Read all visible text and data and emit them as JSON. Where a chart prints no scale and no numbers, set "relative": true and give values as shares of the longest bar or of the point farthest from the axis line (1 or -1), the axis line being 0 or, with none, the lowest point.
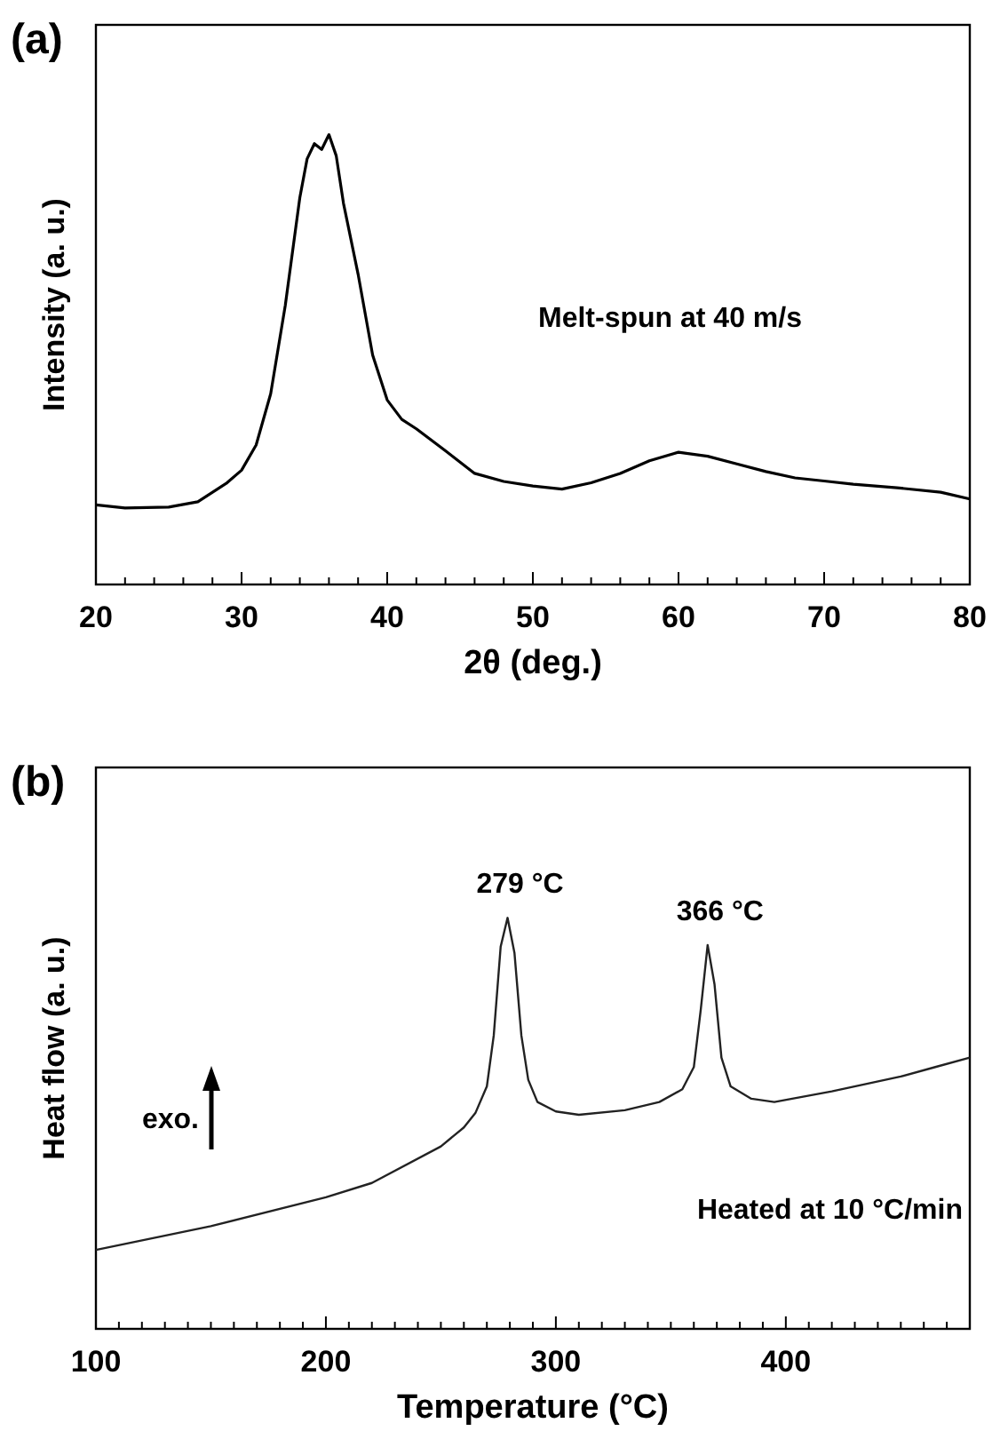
{
  "chart_data": [
    {
      "type": "line",
      "title": "(a)",
      "xlabel": "2θ (deg.)",
      "ylabel": "Intensity (a. u.)",
      "relative": true,
      "tick_labels": "x",
      "grid": false,
      "xlim": [
        20,
        80
      ],
      "xticks": [
        20,
        {
          "value": 22,
          "label": null
        },
        {
          "value": 24,
          "label": null
        },
        {
          "value": 26,
          "label": null
        },
        {
          "value": 28,
          "label": null
        },
        30,
        {
          "value": 32,
          "label": null
        },
        {
          "value": 34,
          "label": null
        },
        {
          "value": 36,
          "label": null
        },
        {
          "value": 38,
          "label": null
        },
        40,
        {
          "value": 42,
          "label": null
        },
        {
          "value": 44,
          "label": null
        },
        {
          "value": 46,
          "label": null
        },
        {
          "value": 48,
          "label": null
        },
        50,
        {
          "value": 52,
          "label": null
        },
        {
          "value": 54,
          "label": null
        },
        {
          "value": 56,
          "label": null
        },
        {
          "value": 58,
          "label": null
        },
        60,
        {
          "value": 62,
          "label": null
        },
        {
          "value": 64,
          "label": null
        },
        {
          "value": 66,
          "label": null
        },
        {
          "value": 68,
          "label": null
        },
        70,
        {
          "value": 72,
          "label": null
        },
        {
          "value": 74,
          "label": null
        },
        {
          "value": 76,
          "label": null
        },
        {
          "value": 78,
          "label": null
        },
        80
      ],
      "annotations": [
        "Melt-spun at 40 m/s"
      ],
      "series": [
        {
          "color": "#000000",
          "x": [
            20,
            22,
            25,
            27,
            29,
            30,
            31,
            32,
            33,
            34,
            34.5,
            35,
            35.5,
            36,
            36.5,
            37,
            38,
            39,
            40,
            41,
            42,
            44,
            46,
            48,
            50,
            52,
            54,
            56,
            58,
            60,
            62,
            64,
            66,
            68,
            70,
            72,
            75,
            78,
            80
          ],
          "values": [
            0.177,
            0.17,
            0.172,
            0.184,
            0.226,
            0.254,
            0.31,
            0.424,
            0.62,
            0.86,
            0.946,
            0.98,
            0.967,
            1,
            0.953,
            0.847,
            0.69,
            0.51,
            0.41,
            0.367,
            0.346,
            0.297,
            0.247,
            0.229,
            0.219,
            0.212,
            0.226,
            0.247,
            0.275,
            0.294,
            0.285,
            0.268,
            0.251,
            0.237,
            0.23,
            0.223,
            0.215,
            0.205,
            0.19
          ]
        }
      ]
    },
    {
      "type": "line",
      "title": "(b)",
      "xlabel": "Temperature (°C)",
      "ylabel": "Heat flow (a. u.)",
      "relative": true,
      "tick_labels": "x",
      "grid": false,
      "xlim": [
        100,
        480
      ],
      "xticks": [
        100,
        {
          "value": 110,
          "label": null
        },
        {
          "value": 120,
          "label": null
        },
        {
          "value": 130,
          "label": null
        },
        {
          "value": 140,
          "label": null
        },
        {
          "value": 150,
          "label": null
        },
        {
          "value": 160,
          "label": null
        },
        {
          "value": 170,
          "label": null
        },
        {
          "value": 180,
          "label": null
        },
        {
          "value": 190,
          "label": null
        },
        200,
        {
          "value": 210,
          "label": null
        },
        {
          "value": 220,
          "label": null
        },
        {
          "value": 230,
          "label": null
        },
        {
          "value": 240,
          "label": null
        },
        {
          "value": 250,
          "label": null
        },
        {
          "value": 260,
          "label": null
        },
        {
          "value": 270,
          "label": null
        },
        {
          "value": 280,
          "label": null
        },
        {
          "value": 290,
          "label": null
        },
        300,
        {
          "value": 310,
          "label": null
        },
        {
          "value": 320,
          "label": null
        },
        {
          "value": 330,
          "label": null
        },
        {
          "value": 340,
          "label": null
        },
        {
          "value": 350,
          "label": null
        },
        {
          "value": 360,
          "label": null
        },
        {
          "value": 370,
          "label": null
        },
        {
          "value": 380,
          "label": null
        },
        {
          "value": 390,
          "label": null
        },
        400,
        {
          "value": 410,
          "label": null
        },
        {
          "value": 420,
          "label": null
        },
        {
          "value": 430,
          "label": null
        },
        {
          "value": 440,
          "label": null
        },
        {
          "value": 450,
          "label": null
        },
        {
          "value": 460,
          "label": null
        },
        {
          "value": 470,
          "label": null
        }
      ],
      "annotations": [
        {
          "text": "279 °C",
          "x": 279,
          "y": 1
        },
        {
          "text": "366 °C",
          "x": 366,
          "y": 0.934
        },
        "exo.",
        "Heated at 10 °C/min"
      ],
      "series": [
        {
          "color": "#222222",
          "x": [
            100,
            150,
            200,
            220,
            250,
            260,
            265,
            270,
            273,
            276,
            279,
            282,
            285,
            288,
            292,
            300,
            310,
            330,
            345,
            355,
            360,
            363,
            366,
            369,
            372,
            376,
            385,
            395,
            420,
            450,
            465,
            480
          ],
          "values": [
            0.192,
            0.25,
            0.32,
            0.355,
            0.444,
            0.49,
            0.525,
            0.59,
            0.714,
            0.93,
            1,
            0.915,
            0.714,
            0.606,
            0.552,
            0.529,
            0.521,
            0.532,
            0.552,
            0.583,
            0.637,
            0.776,
            0.934,
            0.838,
            0.66,
            0.59,
            0.56,
            0.552,
            0.578,
            0.614,
            0.637,
            0.66
          ]
        }
      ]
    }
  ]
}
